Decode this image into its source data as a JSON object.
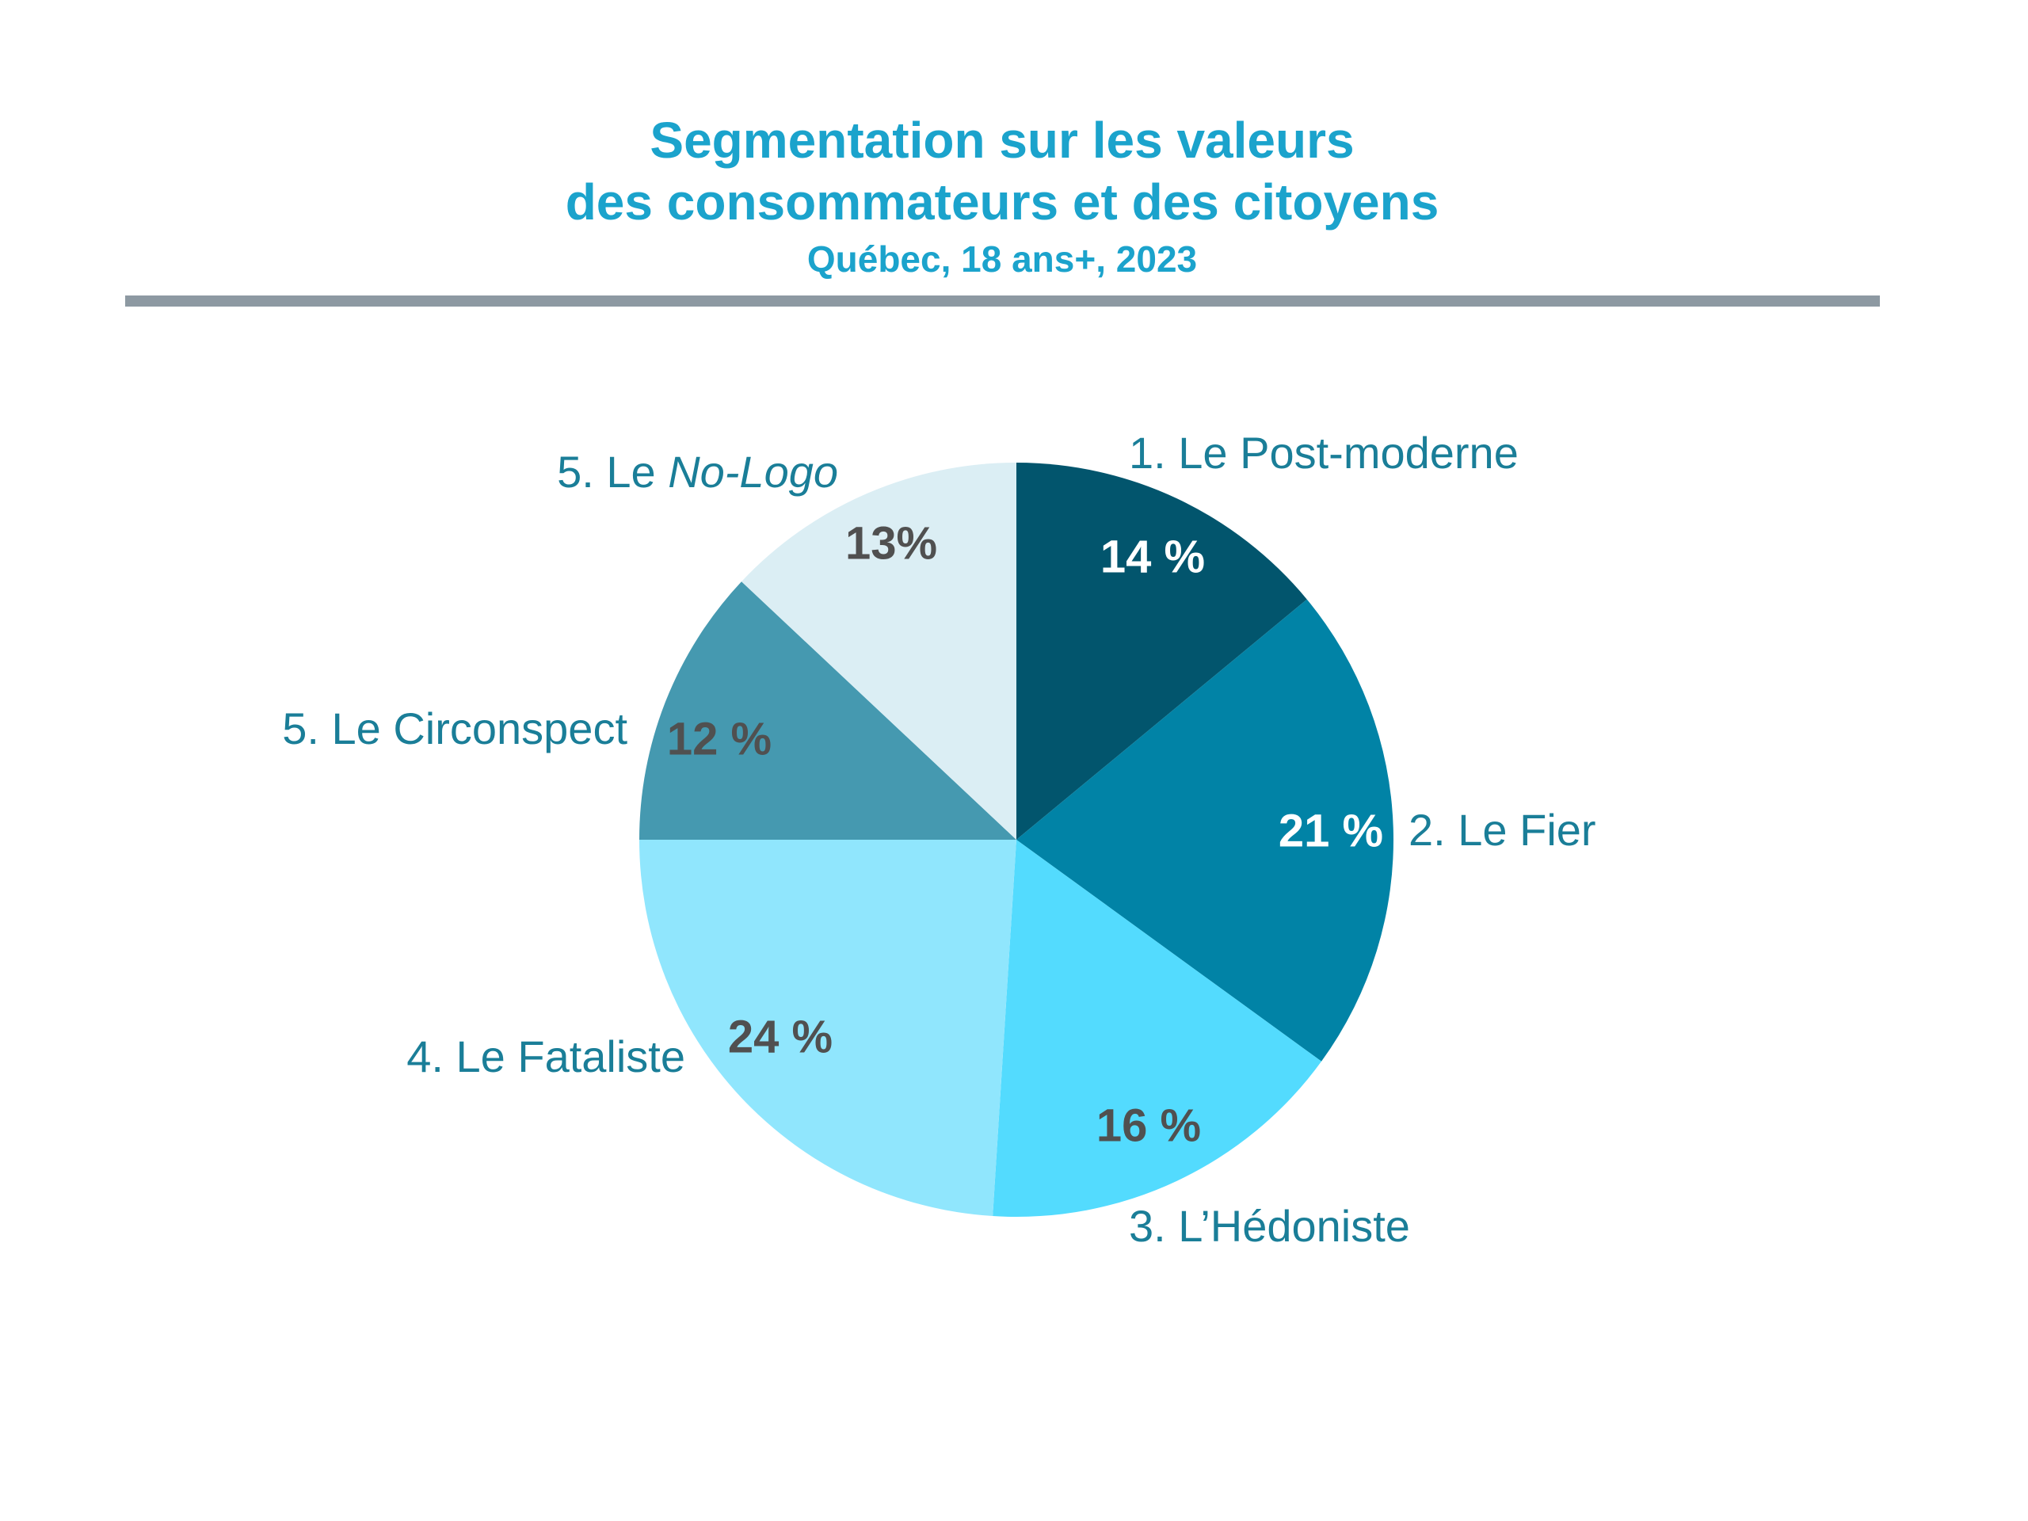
{
  "header": {
    "title_line1": "Segmentation sur les valeurs",
    "title_line2": "des consommateurs et des citoyens",
    "subtitle": "Québec, 18 ans+, 2023"
  },
  "chart_data": {
    "type": "pie",
    "title": "Segmentation sur les valeurs des consommateurs et des citoyens",
    "subtitle": "Québec, 18 ans+, 2023",
    "start": "12 o'clock, clockwise",
    "slices": [
      {
        "label": "1. Le Post-moderne",
        "value": 14,
        "value_label": "14 %",
        "color": "#02556D",
        "value_color": "#FFFFFF"
      },
      {
        "label": "2. Le Fier",
        "value": 21,
        "value_label": "21 %",
        "color": "#0183A6",
        "value_color": "#FFFFFF"
      },
      {
        "label": "3. L’Hédoniste",
        "value": 16,
        "value_label": "16 %",
        "color": "#53DBFE",
        "value_color": "#505050"
      },
      {
        "label": "4. Le Fataliste",
        "value": 24,
        "value_label": "24 %",
        "color": "#90E6FD",
        "value_color": "#505050"
      },
      {
        "label": "5. Le Circonspect",
        "value": 12,
        "value_label": "12 %",
        "color": "#4599B0",
        "value_color": "#505050"
      },
      {
        "label_prefix": "5. Le ",
        "label_italic": "No-Logo",
        "value": 13,
        "value_label": "13%",
        "color": "#DBEEF4",
        "value_color": "#505050"
      }
    ]
  }
}
